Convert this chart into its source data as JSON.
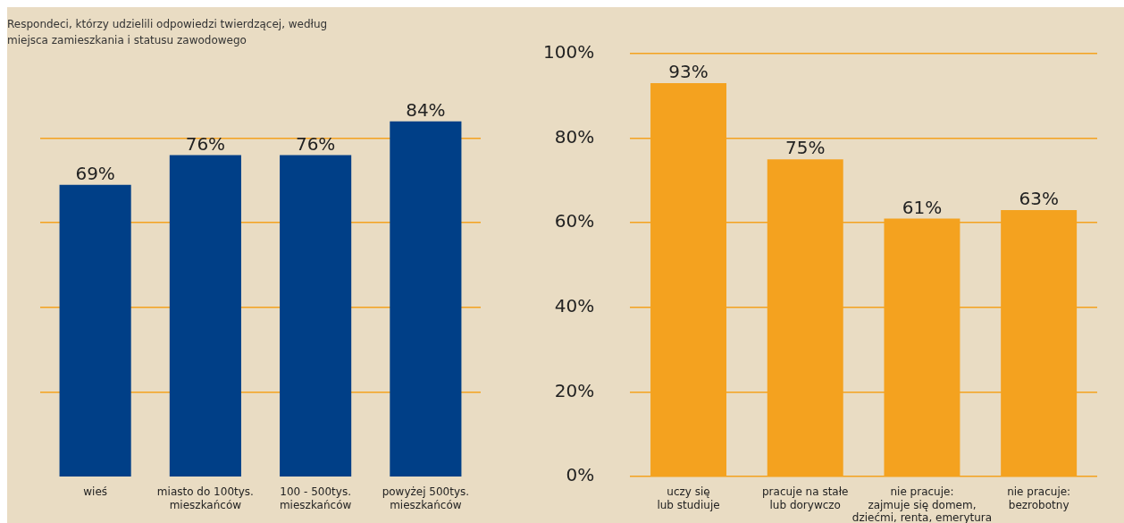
{
  "chart_data": [
    {
      "type": "bar",
      "title": "Respondeci, którzy udzielili odpowiedzi twierdzącej, według\nmiejsca zamieszkania i statusu zawodowego",
      "categories": [
        "wieś",
        "miasto do 100tys.\nmieszkańców",
        "100 - 500tys.\nmieszkańców",
        "powyżej 500tys.\nmieszkańców"
      ],
      "values": [
        69,
        76,
        76,
        84
      ],
      "value_labels": [
        "69%",
        "76%",
        "76%",
        "84%"
      ],
      "color": "#003f87",
      "ylim": [
        0,
        100
      ],
      "yticks": [
        20,
        40,
        60,
        80
      ],
      "grid": "y",
      "tick_labels": "x"
    },
    {
      "type": "bar",
      "categories": [
        "uczy się\nlub studiuje",
        "pracuje na stałe\nlub dorywczo",
        "nie pracuje:\nzajmuje się domem,\ndziećmi, renta, emerytura",
        "nie pracuje:\nbezrobotny"
      ],
      "values": [
        93,
        75,
        61,
        63
      ],
      "value_labels": [
        "93%",
        "75%",
        "61%",
        "63%"
      ],
      "color": "#f4a21f",
      "ylim": [
        0,
        100
      ],
      "yticks": [
        {
          "value": 0,
          "label": "0%"
        },
        {
          "value": 20,
          "label": "20%"
        },
        {
          "value": 40,
          "label": "40%"
        },
        {
          "value": 60,
          "label": "60%"
        },
        {
          "value": 80,
          "label": "80%"
        },
        {
          "value": 100,
          "label": "100%"
        }
      ],
      "grid": "y"
    }
  ]
}
